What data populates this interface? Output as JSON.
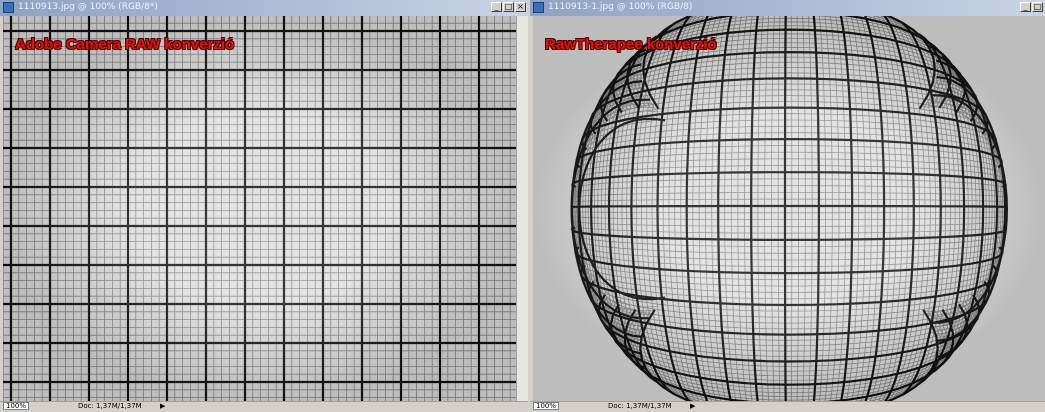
{
  "windows": [
    {
      "title": "1110913.jpg @ 100% (RGB/8*)",
      "label": "Adobe Camera RAW konverzió",
      "zoom": "100%",
      "doc": "Doc: 1,37M/1,37M"
    },
    {
      "title": "1110913-1.jpg @ 100% (RGB/8)",
      "label": "RawTherapee konverzió",
      "zoom": "100%",
      "doc": "Doc: 1,37M/1,37M"
    }
  ]
}
